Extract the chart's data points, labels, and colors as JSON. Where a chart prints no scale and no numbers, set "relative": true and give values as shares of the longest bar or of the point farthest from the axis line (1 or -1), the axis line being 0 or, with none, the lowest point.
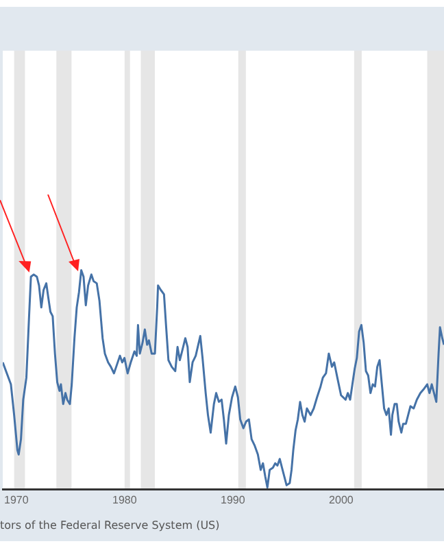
{
  "chart_data": {
    "type": "line",
    "relative": true,
    "legend": false,
    "marker": "none",
    "line_style": "solid",
    "xlim": [
      1968.75,
      2009.5
    ],
    "xticks": [
      1970,
      1980,
      1990,
      2000
    ],
    "annotations": [
      "tors of the Federal Reserve System (US)"
    ],
    "bands": [
      {
        "axis": "x",
        "from": 1969.8,
        "to": 1970.8,
        "color": "#e6e6e6"
      },
      {
        "axis": "x",
        "from": 1973.7,
        "to": 1975.1,
        "color": "#e6e6e6"
      },
      {
        "axis": "x",
        "from": 1980.0,
        "to": 1980.5,
        "color": "#e6e6e6"
      },
      {
        "axis": "x",
        "from": 1981.5,
        "to": 1982.8,
        "color": "#e6e6e6"
      },
      {
        "axis": "x",
        "from": 1990.5,
        "to": 1991.2,
        "color": "#e6e6e6"
      },
      {
        "axis": "x",
        "from": 2001.2,
        "to": 2001.9,
        "color": "#e6e6e6"
      },
      {
        "axis": "x",
        "from": 2007.95,
        "to": 2009.5,
        "color": "#e6e6e6"
      }
    ],
    "series": [
      {
        "color": "#4572a7",
        "x": [
          1968.75,
          1969.5,
          1969.8,
          1970.1,
          1970.22,
          1970.43,
          1970.64,
          1970.93,
          1971.18,
          1971.35,
          1971.6,
          1971.9,
          1972.1,
          1972.31,
          1972.52,
          1972.77,
          1972.94,
          1973.15,
          1973.36,
          1973.57,
          1973.78,
          1973.99,
          1974.12,
          1974.33,
          1974.54,
          1974.7,
          1974.95,
          1975.12,
          1975.37,
          1975.58,
          1975.79,
          1976.0,
          1976.21,
          1976.42,
          1976.63,
          1976.93,
          1977.14,
          1977.43,
          1977.68,
          1977.97,
          1978.18,
          1978.48,
          1978.73,
          1979.02,
          1979.23,
          1979.57,
          1979.78,
          1979.99,
          1980.28,
          1980.57,
          1980.91,
          1981.12,
          1981.24,
          1981.41,
          1981.66,
          1981.87,
          1982.08,
          1982.25,
          1982.5,
          1982.8,
          1983.01,
          1983.09,
          1983.34,
          1983.64,
          1983.84,
          1984.05,
          1984.35,
          1984.68,
          1984.89,
          1985.1,
          1985.31,
          1985.61,
          1985.82,
          1986.02,
          1986.28,
          1986.57,
          1986.99,
          1987.2,
          1987.49,
          1987.7,
          1987.95,
          1988.25,
          1988.46,
          1988.71,
          1988.96,
          1989.17,
          1989.38,
          1989.63,
          1989.92,
          1990.22,
          1990.47,
          1990.68,
          1990.97,
          1991.22,
          1991.48,
          1991.73,
          1992.02,
          1992.31,
          1992.57,
          1992.78,
          1992.99,
          1993.19,
          1993.4,
          1993.7,
          1993.91,
          1994.12,
          1994.33,
          1994.54,
          1994.75,
          1994.96,
          1995.25,
          1995.42,
          1995.58,
          1995.79,
          1996.0,
          1996.21,
          1996.42,
          1996.63,
          1996.84,
          1997.18,
          1997.47,
          1997.77,
          1998.1,
          1998.31,
          1998.6,
          1998.86,
          1999.15,
          1999.36,
          1999.65,
          1999.99,
          2000.41,
          2000.62,
          2000.83,
          2001.04,
          2001.25,
          2001.45,
          2001.66,
          2001.87,
          2002.08,
          2002.29,
          2002.5,
          2002.71,
          2002.92,
          2003.13,
          2003.34,
          2003.55,
          2003.76,
          2003.97,
          2004.18,
          2004.39,
          2004.6,
          2004.73,
          2004.94,
          2005.14,
          2005.31,
          2005.56,
          2005.73,
          2005.98,
          2006.19,
          2006.4,
          2006.7,
          2006.99,
          2007.32,
          2007.66,
          2007.95,
          2008.16,
          2008.37,
          2008.58,
          2008.79,
          2009.0,
          2009.13,
          2009.34,
          2009.5
        ],
        "values": [
          0.58,
          0.48,
          0.34,
          0.18,
          0.16,
          0.23,
          0.41,
          0.51,
          0.79,
          0.97,
          0.98,
          0.97,
          0.93,
          0.83,
          0.91,
          0.94,
          0.88,
          0.81,
          0.79,
          0.62,
          0.49,
          0.45,
          0.48,
          0.39,
          0.44,
          0.41,
          0.39,
          0.48,
          0.69,
          0.83,
          0.9,
          1.0,
          0.97,
          0.84,
          0.93,
          0.98,
          0.95,
          0.94,
          0.86,
          0.69,
          0.62,
          0.58,
          0.56,
          0.53,
          0.56,
          0.61,
          0.58,
          0.6,
          0.53,
          0.58,
          0.63,
          0.61,
          0.75,
          0.62,
          0.67,
          0.73,
          0.66,
          0.68,
          0.62,
          0.62,
          0.83,
          0.93,
          0.91,
          0.89,
          0.74,
          0.59,
          0.56,
          0.54,
          0.65,
          0.59,
          0.63,
          0.69,
          0.65,
          0.49,
          0.58,
          0.61,
          0.7,
          0.6,
          0.44,
          0.34,
          0.26,
          0.39,
          0.44,
          0.4,
          0.41,
          0.32,
          0.21,
          0.34,
          0.42,
          0.47,
          0.42,
          0.32,
          0.28,
          0.31,
          0.32,
          0.23,
          0.2,
          0.16,
          0.09,
          0.12,
          0.06,
          0.01,
          0.09,
          0.1,
          0.12,
          0.11,
          0.14,
          0.1,
          0.06,
          0.02,
          0.03,
          0.09,
          0.18,
          0.27,
          0.32,
          0.4,
          0.34,
          0.31,
          0.37,
          0.34,
          0.37,
          0.42,
          0.47,
          0.51,
          0.53,
          0.62,
          0.56,
          0.58,
          0.51,
          0.43,
          0.41,
          0.44,
          0.41,
          0.48,
          0.55,
          0.6,
          0.72,
          0.75,
          0.67,
          0.54,
          0.52,
          0.44,
          0.48,
          0.47,
          0.56,
          0.59,
          0.48,
          0.37,
          0.34,
          0.37,
          0.25,
          0.34,
          0.39,
          0.39,
          0.31,
          0.26,
          0.3,
          0.3,
          0.34,
          0.38,
          0.37,
          0.41,
          0.44,
          0.46,
          0.48,
          0.44,
          0.48,
          0.44,
          0.4,
          0.62,
          0.74,
          0.69,
          0.66
        ]
      }
    ]
  }
}
